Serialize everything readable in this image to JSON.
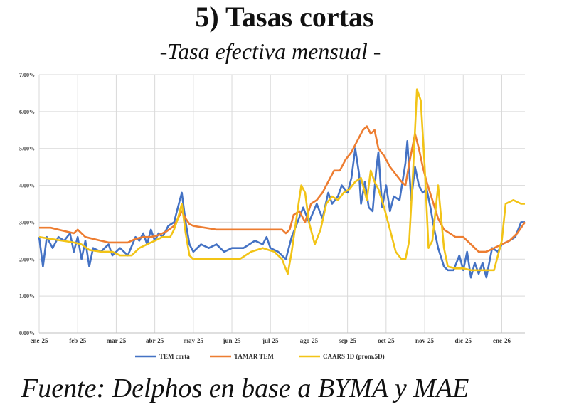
{
  "title": "5) Tasas cortas",
  "subtitle": "-Tasa efectiva mensual -",
  "source": "Fuente:  Delphos en base a BYMA y MAE",
  "chart_data": {
    "type": "line",
    "x_labels": [
      "ene-25",
      "feb-25",
      "mar-25",
      "abr-25",
      "may-25",
      "jun-25",
      "jul-25",
      "ago-25",
      "sep-25",
      "oct-25",
      "nov-25",
      "dic-25",
      "ene-26"
    ],
    "y_ticks": [
      "0.00%",
      "1.00%",
      "2.00%",
      "3.00%",
      "4.00%",
      "5.00%",
      "6.00%",
      "7.00%"
    ],
    "ylim": [
      0,
      7
    ],
    "x_range": [
      0,
      12.6
    ],
    "grid": true,
    "legend_position": "bottom",
    "series": [
      {
        "name": "TEM corta",
        "color": "#4472C4",
        "points": [
          [
            0,
            2.6
          ],
          [
            0.1,
            1.8
          ],
          [
            0.2,
            2.6
          ],
          [
            0.35,
            2.3
          ],
          [
            0.5,
            2.6
          ],
          [
            0.65,
            2.5
          ],
          [
            0.8,
            2.7
          ],
          [
            0.9,
            2.2
          ],
          [
            1.0,
            2.6
          ],
          [
            1.1,
            2.0
          ],
          [
            1.2,
            2.5
          ],
          [
            1.3,
            1.8
          ],
          [
            1.4,
            2.3
          ],
          [
            1.6,
            2.2
          ],
          [
            1.8,
            2.4
          ],
          [
            1.9,
            2.1
          ],
          [
            2.1,
            2.3
          ],
          [
            2.3,
            2.1
          ],
          [
            2.5,
            2.6
          ],
          [
            2.6,
            2.5
          ],
          [
            2.7,
            2.7
          ],
          [
            2.8,
            2.4
          ],
          [
            2.9,
            2.8
          ],
          [
            3.0,
            2.5
          ],
          [
            3.1,
            2.7
          ],
          [
            3.2,
            2.6
          ],
          [
            3.35,
            2.9
          ],
          [
            3.5,
            3.0
          ],
          [
            3.6,
            3.4
          ],
          [
            3.7,
            3.8
          ],
          [
            3.8,
            3.0
          ],
          [
            3.9,
            2.4
          ],
          [
            4.0,
            2.2
          ],
          [
            4.2,
            2.4
          ],
          [
            4.4,
            2.3
          ],
          [
            4.6,
            2.4
          ],
          [
            4.8,
            2.2
          ],
          [
            5.0,
            2.3
          ],
          [
            5.3,
            2.3
          ],
          [
            5.6,
            2.5
          ],
          [
            5.8,
            2.4
          ],
          [
            5.9,
            2.6
          ],
          [
            6.0,
            2.3
          ],
          [
            6.2,
            2.2
          ],
          [
            6.4,
            2.0
          ],
          [
            6.55,
            2.6
          ],
          [
            6.7,
            3.0
          ],
          [
            6.85,
            3.4
          ],
          [
            7.0,
            3.0
          ],
          [
            7.2,
            3.5
          ],
          [
            7.35,
            3.1
          ],
          [
            7.5,
            3.8
          ],
          [
            7.6,
            3.5
          ],
          [
            7.75,
            3.7
          ],
          [
            7.85,
            4.0
          ],
          [
            8.0,
            3.8
          ],
          [
            8.1,
            4.2
          ],
          [
            8.2,
            5.0
          ],
          [
            8.3,
            4.3
          ],
          [
            8.35,
            3.5
          ],
          [
            8.45,
            4.1
          ],
          [
            8.55,
            3.4
          ],
          [
            8.65,
            3.3
          ],
          [
            8.75,
            4.5
          ],
          [
            8.8,
            4.9
          ],
          [
            8.9,
            3.4
          ],
          [
            9.0,
            4.0
          ],
          [
            9.1,
            3.3
          ],
          [
            9.2,
            3.7
          ],
          [
            9.35,
            3.6
          ],
          [
            9.5,
            4.6
          ],
          [
            9.55,
            5.2
          ],
          [
            9.65,
            3.6
          ],
          [
            9.75,
            4.5
          ],
          [
            9.85,
            4.0
          ],
          [
            9.95,
            3.8
          ],
          [
            10.05,
            3.9
          ],
          [
            10.15,
            3.4
          ],
          [
            10.25,
            2.8
          ],
          [
            10.35,
            2.3
          ],
          [
            10.5,
            1.8
          ],
          [
            10.6,
            1.7
          ],
          [
            10.75,
            1.7
          ],
          [
            10.9,
            2.1
          ],
          [
            11.0,
            1.7
          ],
          [
            11.1,
            2.2
          ],
          [
            11.2,
            1.5
          ],
          [
            11.3,
            1.9
          ],
          [
            11.4,
            1.6
          ],
          [
            11.5,
            1.9
          ],
          [
            11.6,
            1.5
          ],
          [
            11.75,
            2.3
          ],
          [
            11.9,
            2.2
          ],
          [
            12.0,
            2.4
          ],
          [
            12.2,
            2.5
          ],
          [
            12.35,
            2.6
          ],
          [
            12.5,
            3.0
          ],
          [
            12.6,
            3.0
          ]
        ]
      },
      {
        "name": "TAMAR TEM",
        "color": "#ED7D31",
        "points": [
          [
            0,
            2.85
          ],
          [
            0.3,
            2.85
          ],
          [
            0.5,
            2.8
          ],
          [
            0.7,
            2.75
          ],
          [
            0.9,
            2.7
          ],
          [
            1.0,
            2.8
          ],
          [
            1.2,
            2.6
          ],
          [
            1.4,
            2.55
          ],
          [
            1.6,
            2.5
          ],
          [
            1.8,
            2.45
          ],
          [
            2.0,
            2.45
          ],
          [
            2.3,
            2.45
          ],
          [
            2.5,
            2.55
          ],
          [
            2.7,
            2.6
          ],
          [
            2.9,
            2.6
          ],
          [
            3.1,
            2.65
          ],
          [
            3.3,
            2.75
          ],
          [
            3.5,
            2.9
          ],
          [
            3.6,
            3.1
          ],
          [
            3.7,
            3.3
          ],
          [
            3.8,
            3.1
          ],
          [
            3.9,
            2.95
          ],
          [
            4.0,
            2.9
          ],
          [
            4.3,
            2.85
          ],
          [
            4.6,
            2.8
          ],
          [
            4.9,
            2.8
          ],
          [
            5.2,
            2.8
          ],
          [
            5.5,
            2.8
          ],
          [
            5.8,
            2.8
          ],
          [
            6.1,
            2.8
          ],
          [
            6.3,
            2.8
          ],
          [
            6.4,
            2.7
          ],
          [
            6.5,
            2.8
          ],
          [
            6.6,
            3.2
          ],
          [
            6.75,
            3.3
          ],
          [
            6.9,
            3.0
          ],
          [
            7.05,
            3.5
          ],
          [
            7.2,
            3.6
          ],
          [
            7.35,
            3.8
          ],
          [
            7.5,
            4.1
          ],
          [
            7.65,
            4.4
          ],
          [
            7.8,
            4.4
          ],
          [
            7.95,
            4.7
          ],
          [
            8.1,
            4.9
          ],
          [
            8.25,
            5.2
          ],
          [
            8.4,
            5.5
          ],
          [
            8.5,
            5.6
          ],
          [
            8.6,
            5.4
          ],
          [
            8.7,
            5.5
          ],
          [
            8.8,
            5.0
          ],
          [
            8.95,
            4.8
          ],
          [
            9.1,
            4.5
          ],
          [
            9.25,
            4.3
          ],
          [
            9.4,
            4.1
          ],
          [
            9.5,
            4.0
          ],
          [
            9.6,
            4.6
          ],
          [
            9.75,
            5.4
          ],
          [
            9.85,
            5.0
          ],
          [
            9.95,
            4.5
          ],
          [
            10.05,
            4.1
          ],
          [
            10.2,
            3.6
          ],
          [
            10.35,
            3.1
          ],
          [
            10.5,
            2.8
          ],
          [
            10.65,
            2.7
          ],
          [
            10.8,
            2.6
          ],
          [
            11.0,
            2.6
          ],
          [
            11.2,
            2.4
          ],
          [
            11.4,
            2.2
          ],
          [
            11.6,
            2.2
          ],
          [
            11.8,
            2.3
          ],
          [
            12.0,
            2.4
          ],
          [
            12.2,
            2.5
          ],
          [
            12.4,
            2.7
          ],
          [
            12.6,
            3.0
          ]
        ]
      },
      {
        "name": "CAARS 1D (prom.5D)",
        "color": "#F2C417",
        "points": [
          [
            0,
            2.6
          ],
          [
            0.3,
            2.55
          ],
          [
            0.6,
            2.5
          ],
          [
            0.9,
            2.45
          ],
          [
            1.1,
            2.4
          ],
          [
            1.3,
            2.25
          ],
          [
            1.6,
            2.2
          ],
          [
            1.9,
            2.2
          ],
          [
            2.1,
            2.1
          ],
          [
            2.4,
            2.1
          ],
          [
            2.6,
            2.3
          ],
          [
            2.8,
            2.4
          ],
          [
            3.0,
            2.5
          ],
          [
            3.2,
            2.6
          ],
          [
            3.4,
            2.6
          ],
          [
            3.5,
            2.8
          ],
          [
            3.6,
            3.1
          ],
          [
            3.7,
            3.5
          ],
          [
            3.8,
            2.7
          ],
          [
            3.9,
            2.1
          ],
          [
            4.0,
            2.0
          ],
          [
            4.3,
            2.0
          ],
          [
            4.6,
            2.0
          ],
          [
            4.9,
            2.0
          ],
          [
            5.2,
            2.0
          ],
          [
            5.5,
            2.2
          ],
          [
            5.8,
            2.3
          ],
          [
            6.1,
            2.2
          ],
          [
            6.3,
            2.0
          ],
          [
            6.45,
            1.6
          ],
          [
            6.55,
            2.2
          ],
          [
            6.7,
            3.3
          ],
          [
            6.8,
            4.0
          ],
          [
            6.9,
            3.8
          ],
          [
            7.0,
            3.0
          ],
          [
            7.15,
            2.4
          ],
          [
            7.3,
            2.8
          ],
          [
            7.45,
            3.5
          ],
          [
            7.6,
            3.7
          ],
          [
            7.75,
            3.6
          ],
          [
            7.9,
            3.8
          ],
          [
            8.05,
            3.9
          ],
          [
            8.2,
            4.1
          ],
          [
            8.35,
            4.2
          ],
          [
            8.5,
            3.6
          ],
          [
            8.6,
            4.4
          ],
          [
            8.7,
            4.1
          ],
          [
            8.8,
            3.9
          ],
          [
            8.95,
            3.4
          ],
          [
            9.1,
            2.8
          ],
          [
            9.25,
            2.2
          ],
          [
            9.4,
            2.0
          ],
          [
            9.5,
            2.0
          ],
          [
            9.6,
            2.5
          ],
          [
            9.7,
            4.4
          ],
          [
            9.8,
            6.6
          ],
          [
            9.9,
            6.3
          ],
          [
            10.0,
            4.5
          ],
          [
            10.1,
            2.3
          ],
          [
            10.2,
            2.5
          ],
          [
            10.35,
            4.0
          ],
          [
            10.5,
            2.3
          ],
          [
            10.6,
            1.8
          ],
          [
            10.8,
            1.75
          ],
          [
            11.0,
            1.75
          ],
          [
            11.2,
            1.7
          ],
          [
            11.4,
            1.7
          ],
          [
            11.6,
            1.7
          ],
          [
            11.8,
            1.7
          ],
          [
            12.0,
            2.5
          ],
          [
            12.1,
            3.5
          ],
          [
            12.3,
            3.6
          ],
          [
            12.5,
            3.5
          ],
          [
            12.6,
            3.5
          ]
        ]
      }
    ]
  }
}
